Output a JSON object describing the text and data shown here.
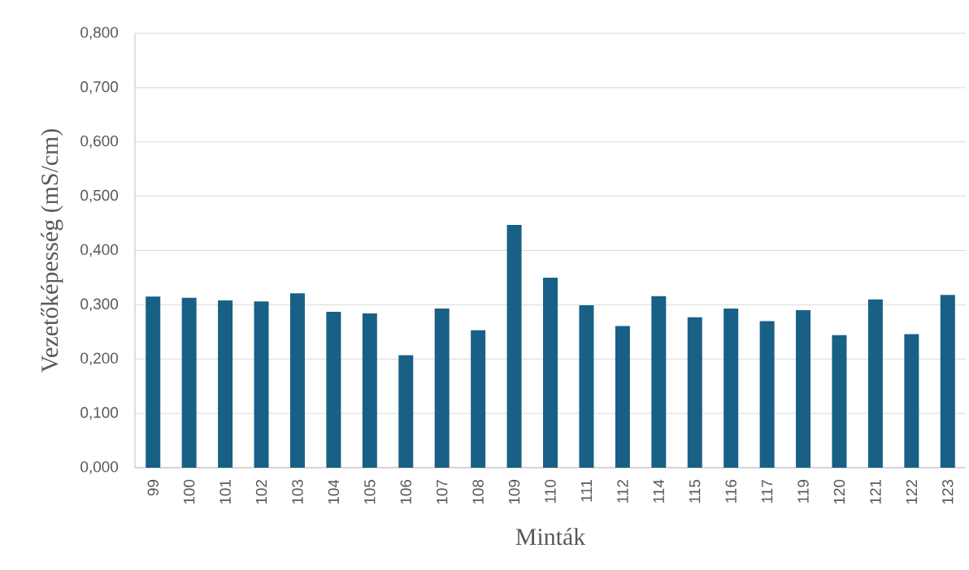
{
  "chart_data": {
    "type": "bar",
    "xlabel": "Minták",
    "ylabel": "Vezetőképesség (mS/cm)",
    "categories": [
      "99",
      "100",
      "101",
      "102",
      "103",
      "104",
      "105",
      "106",
      "107",
      "108",
      "109",
      "110",
      "111",
      "112",
      "114",
      "115",
      "116",
      "117",
      "119",
      "120",
      "121",
      "122",
      "123"
    ],
    "values": [
      0.315,
      0.313,
      0.308,
      0.306,
      0.321,
      0.287,
      0.284,
      0.207,
      0.293,
      0.253,
      0.447,
      0.35,
      0.299,
      0.261,
      0.316,
      0.277,
      0.293,
      0.27,
      0.29,
      0.244,
      0.31,
      0.246,
      0.318
    ],
    "color": "#186085",
    "ylim": [
      0,
      0.8
    ],
    "yticks": [
      {
        "value": 0,
        "label": "0,000"
      },
      {
        "value": 0.1,
        "label": "0,100"
      },
      {
        "value": 0.2,
        "label": "0,200"
      },
      {
        "value": 0.3,
        "label": "0,300"
      },
      {
        "value": 0.4,
        "label": "0,400"
      },
      {
        "value": 0.5,
        "label": "0,500"
      },
      {
        "value": 0.6,
        "label": "0,600"
      },
      {
        "value": 0.7,
        "label": "0,700"
      },
      {
        "value": 0.8,
        "label": "0,800"
      }
    ],
    "grid": "y"
  }
}
